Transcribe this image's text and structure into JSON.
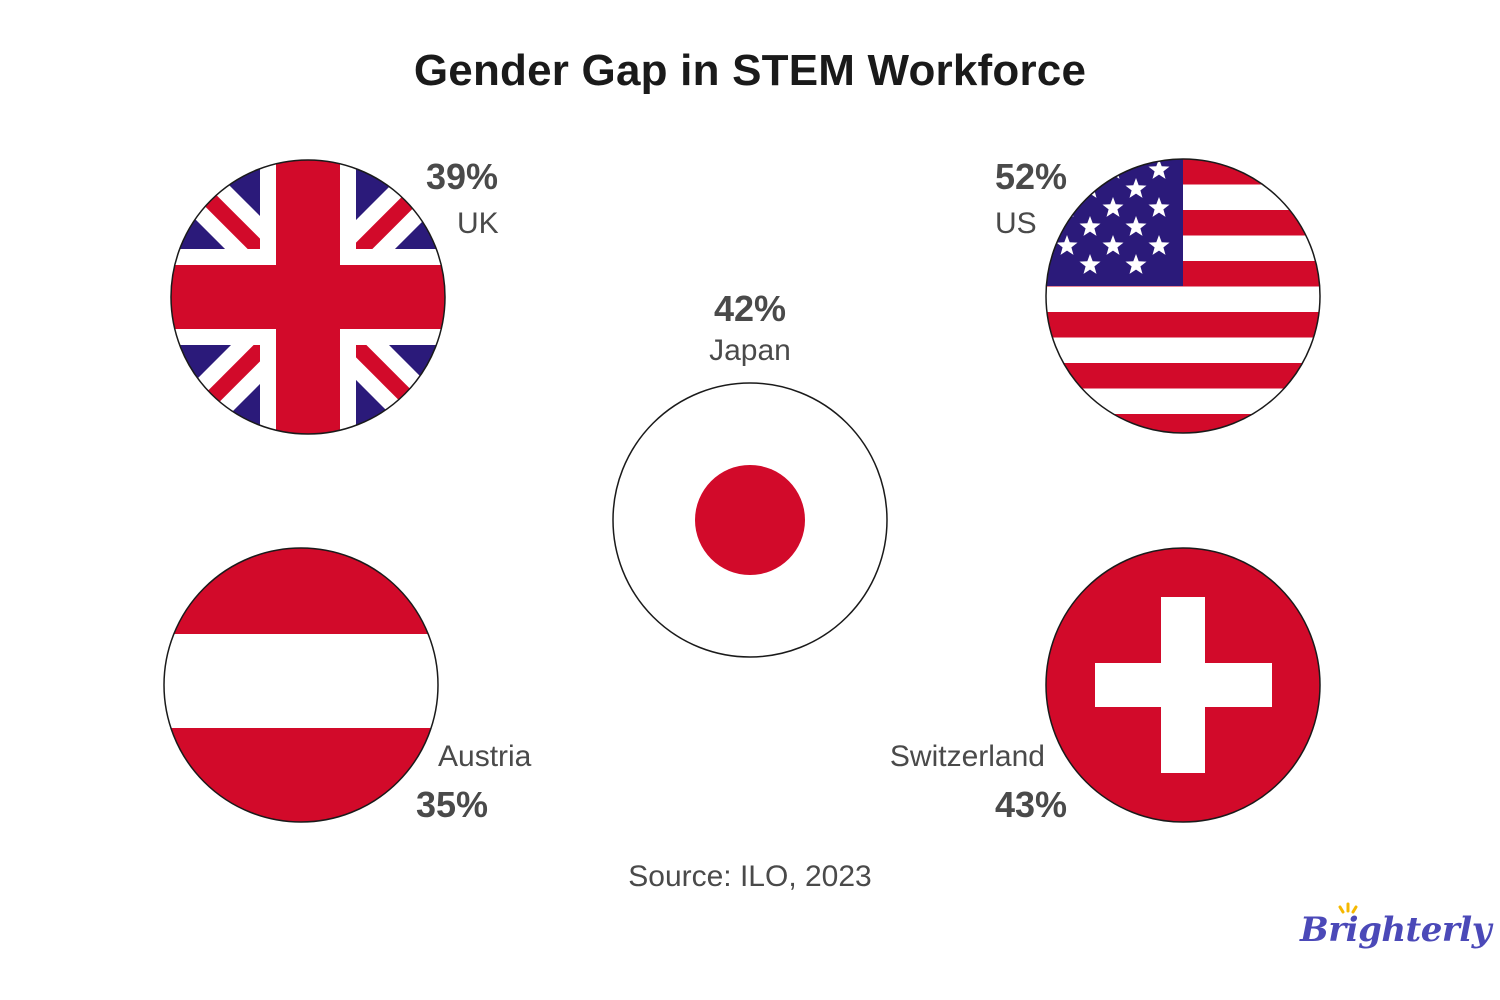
{
  "title": "Gender Gap in STEM Workforce",
  "source": "Source: ILO, 2023",
  "logo": "Brighterly",
  "colors": {
    "red": "#d20a2a",
    "navy": "#2b1a7a",
    "white": "#ffffff",
    "text": "#4a4a4a",
    "title": "#1a1a1a",
    "logo": "#4b49b8",
    "logo_sun": "#f5b800"
  },
  "countries": [
    {
      "key": "uk",
      "name": "UK",
      "value": "39%",
      "flag": "uk-flag-icon"
    },
    {
      "key": "us",
      "name": "US",
      "value": "52%",
      "flag": "us-flag-icon"
    },
    {
      "key": "japan",
      "name": "Japan",
      "value": "42%",
      "flag": "japan-flag-icon"
    },
    {
      "key": "austria",
      "name": "Austria",
      "value": "35%",
      "flag": "austria-flag-icon"
    },
    {
      "key": "switzerland",
      "name": "Switzerland",
      "value": "43%",
      "flag": "switzerland-flag-icon"
    }
  ]
}
